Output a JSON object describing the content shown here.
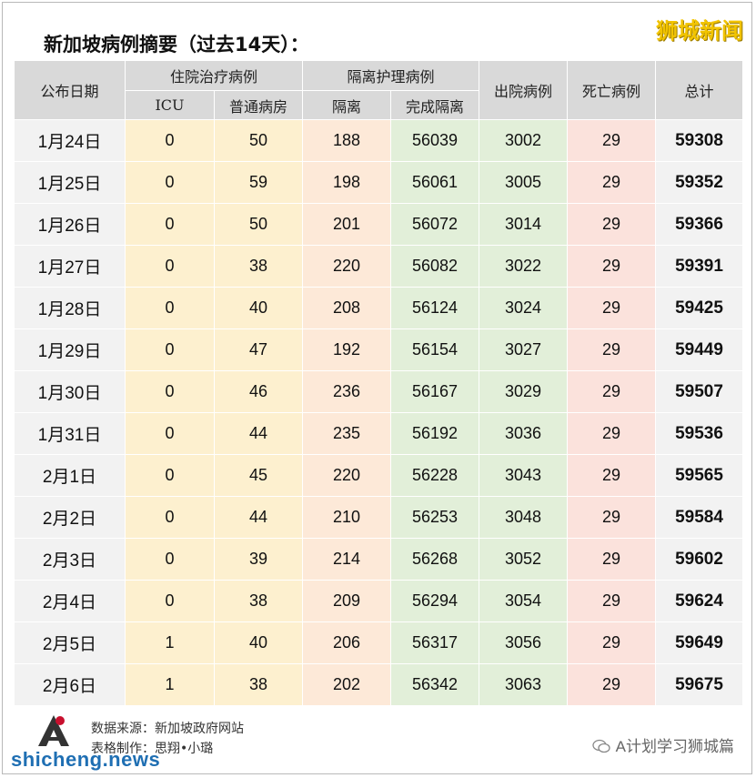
{
  "title": "新加坡病例摘要（过去14天）：",
  "brand": "狮城新闻",
  "header": {
    "date": "公布日期",
    "hospitalized": "住院治疗病例",
    "icu": "ICU",
    "ward": "普通病房",
    "isolation_group": "隔离护理病例",
    "isolation": "隔离",
    "completed": "完成隔离",
    "discharged": "出院病例",
    "deaths": "死亡病例",
    "total": "总计"
  },
  "rows": [
    {
      "date": "1月24日",
      "icu": "0",
      "ward": "50",
      "isolation": "188",
      "completed": "56039",
      "discharged": "3002",
      "deaths": "29",
      "total": "59308"
    },
    {
      "date": "1月25日",
      "icu": "0",
      "ward": "59",
      "isolation": "198",
      "completed": "56061",
      "discharged": "3005",
      "deaths": "29",
      "total": "59352"
    },
    {
      "date": "1月26日",
      "icu": "0",
      "ward": "50",
      "isolation": "201",
      "completed": "56072",
      "discharged": "3014",
      "deaths": "29",
      "total": "59366"
    },
    {
      "date": "1月27日",
      "icu": "0",
      "ward": "38",
      "isolation": "220",
      "completed": "56082",
      "discharged": "3022",
      "deaths": "29",
      "total": "59391"
    },
    {
      "date": "1月28日",
      "icu": "0",
      "ward": "40",
      "isolation": "208",
      "completed": "56124",
      "discharged": "3024",
      "deaths": "29",
      "total": "59425"
    },
    {
      "date": "1月29日",
      "icu": "0",
      "ward": "47",
      "isolation": "192",
      "completed": "56154",
      "discharged": "3027",
      "deaths": "29",
      "total": "59449"
    },
    {
      "date": "1月30日",
      "icu": "0",
      "ward": "46",
      "isolation": "236",
      "completed": "56167",
      "discharged": "3029",
      "deaths": "29",
      "total": "59507"
    },
    {
      "date": "1月31日",
      "icu": "0",
      "ward": "44",
      "isolation": "235",
      "completed": "56192",
      "discharged": "3036",
      "deaths": "29",
      "total": "59536"
    },
    {
      "date": "2月1日",
      "icu": "0",
      "ward": "45",
      "isolation": "220",
      "completed": "56228",
      "discharged": "3043",
      "deaths": "29",
      "total": "59565"
    },
    {
      "date": "2月2日",
      "icu": "0",
      "ward": "44",
      "isolation": "210",
      "completed": "56253",
      "discharged": "3048",
      "deaths": "29",
      "total": "59584"
    },
    {
      "date": "2月3日",
      "icu": "0",
      "ward": "39",
      "isolation": "214",
      "completed": "56268",
      "discharged": "3052",
      "deaths": "29",
      "total": "59602"
    },
    {
      "date": "2月4日",
      "icu": "0",
      "ward": "38",
      "isolation": "209",
      "completed": "56294",
      "discharged": "3054",
      "deaths": "29",
      "total": "59624"
    },
    {
      "date": "2月5日",
      "icu": "1",
      "ward": "40",
      "isolation": "206",
      "completed": "56317",
      "discharged": "3056",
      "deaths": "29",
      "total": "59649"
    },
    {
      "date": "2月6日",
      "icu": "1",
      "ward": "38",
      "isolation": "202",
      "completed": "56342",
      "discharged": "3063",
      "deaths": "29",
      "total": "59675"
    }
  ],
  "footer": {
    "source": "数据来源：新加坡政府网站",
    "made_by": "表格制作：思翔•小璐"
  },
  "site": "shicheng.news",
  "wechat": "A计划学习狮城篇",
  "icons": {
    "logo": "a-plan-logo-icon",
    "wechat": "wechat-icon"
  },
  "colors": {
    "header_bg": "#d9d9d9",
    "date_bg": "#f2f2f2",
    "hospital_bg": "#fdf0cf",
    "isolation_bg": "#fde9d8",
    "green_bg": "#e2efd9",
    "death_bg": "#fbe2dc",
    "brand": "#f2c400"
  }
}
